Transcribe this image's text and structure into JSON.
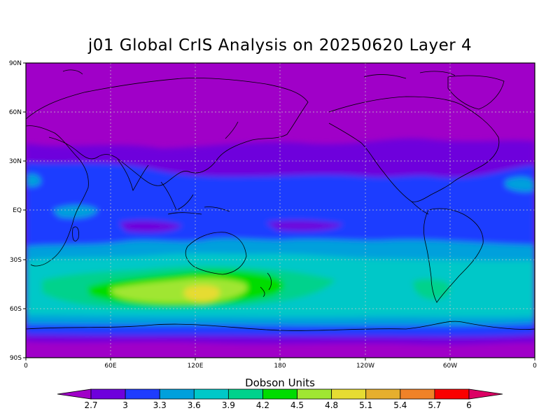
{
  "title": "j01 Global CrIS Analysis on 20250620 Layer 4",
  "lat_labels": [
    "90N",
    "60N",
    "30N",
    "EQ",
    "30S",
    "60S",
    "90S"
  ],
  "lon_labels": [
    "0",
    "60E",
    "120E",
    "180",
    "120W",
    "60W",
    "0"
  ],
  "colorbar": {
    "title": "Dobson Units",
    "levels": [
      "2.7",
      "3",
      "3.3",
      "3.6",
      "3.9",
      "4.2",
      "4.5",
      "4.8",
      "5.1",
      "5.4",
      "5.7",
      "6"
    ],
    "colors": [
      "#a000c8",
      "#6e00dc",
      "#1e3cff",
      "#00a0dc",
      "#00c8c8",
      "#00d28c",
      "#00dc00",
      "#a0e632",
      "#e6dc32",
      "#e6af2d",
      "#f08228",
      "#fa0000",
      "#dc0064"
    ]
  },
  "map": {
    "projection": "cylindrical-equidistant",
    "lon_range": [
      0,
      360
    ],
    "lat_range": [
      -90,
      90
    ],
    "grid": true
  }
}
